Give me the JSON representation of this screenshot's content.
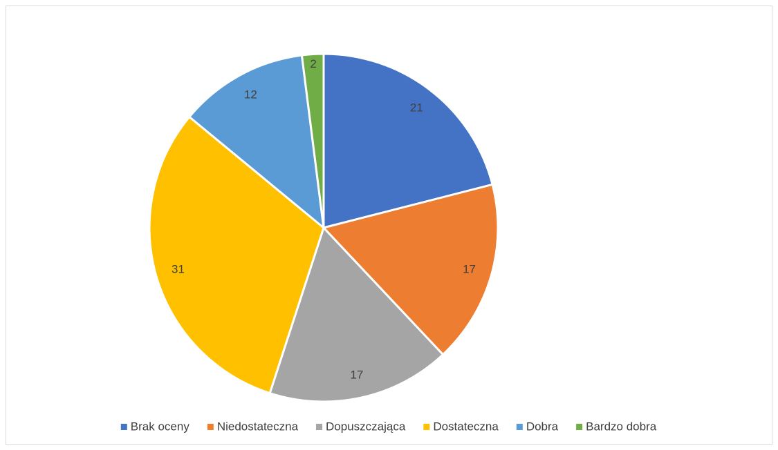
{
  "chart_data": {
    "type": "pie",
    "categories": [
      "Brak oceny",
      "Niedostateczna",
      "Dopuszczająca",
      "Dostateczna",
      "Dobra",
      "Bardzo dobra"
    ],
    "values": [
      21,
      17,
      17,
      31,
      12,
      2
    ],
    "colors": [
      "#4472c4",
      "#ed7d31",
      "#a5a5a5",
      "#ffc000",
      "#5b9bd5",
      "#70ad47"
    ],
    "legend": "bottom"
  }
}
